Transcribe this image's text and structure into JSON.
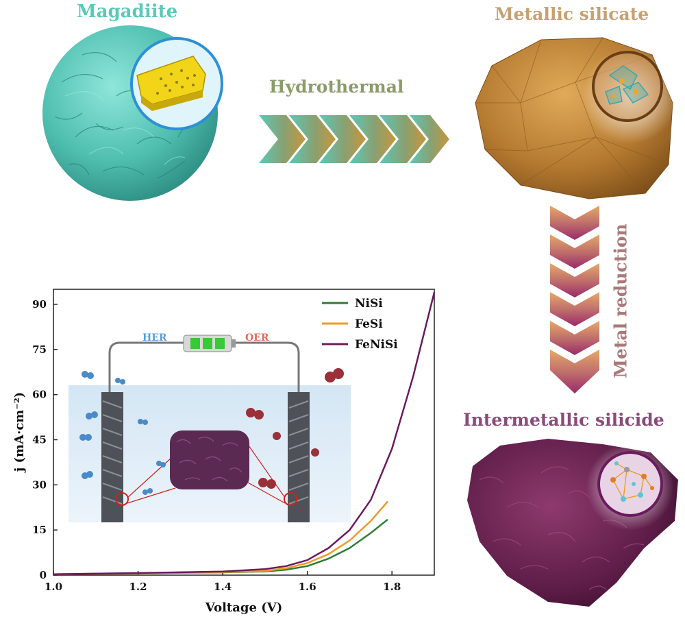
{
  "labels": {
    "magadiite": "Magadiite",
    "metallic_silicate": "Metallic silicate",
    "hydrothermal": "Hydrothermal",
    "metal_reduction": "Metal reduction",
    "intermetallic_silicide": "Intermetallic silicide",
    "her": "HER",
    "oer": "OER"
  },
  "colors": {
    "teal": "#5cc8b8",
    "brown": "#b57a30",
    "purple": "#6e2352",
    "nisi": "#2e7d32",
    "fesi": "#f09a28",
    "fenisi": "#6a1a5e"
  },
  "chart_data": {
    "type": "line",
    "xlabel": "Voltage (V)",
    "ylabel": "j (mA·cm⁻²)",
    "xlim": [
      1.0,
      1.9
    ],
    "ylim": [
      0,
      95
    ],
    "xticks": [
      "1.0",
      "1.2",
      "1.4",
      "1.6",
      "1.8"
    ],
    "yticks": [
      "0",
      "15",
      "30",
      "45",
      "60",
      "75",
      "90"
    ],
    "legend": "top-right",
    "series": [
      {
        "name": "NiSi",
        "x": [
          1.0,
          1.2,
          1.4,
          1.5,
          1.55,
          1.6,
          1.65,
          1.7,
          1.75,
          1.79
        ],
        "y": [
          0.3,
          0.6,
          0.9,
          1.2,
          1.8,
          3.0,
          5.5,
          9.0,
          14.0,
          18.5
        ]
      },
      {
        "name": "FeSi",
        "x": [
          1.0,
          1.2,
          1.4,
          1.5,
          1.55,
          1.6,
          1.65,
          1.7,
          1.75,
          1.79
        ],
        "y": [
          0.3,
          0.6,
          1.0,
          1.4,
          2.3,
          4.0,
          7.0,
          11.5,
          18.0,
          24.5
        ]
      },
      {
        "name": "FeNiSi",
        "x": [
          1.0,
          1.2,
          1.4,
          1.5,
          1.55,
          1.6,
          1.65,
          1.7,
          1.75,
          1.8,
          1.85,
          1.9
        ],
        "y": [
          0.3,
          0.7,
          1.2,
          2.0,
          3.0,
          5.0,
          9.0,
          15.0,
          25.0,
          42.0,
          66.0,
          94.0
        ]
      }
    ]
  }
}
